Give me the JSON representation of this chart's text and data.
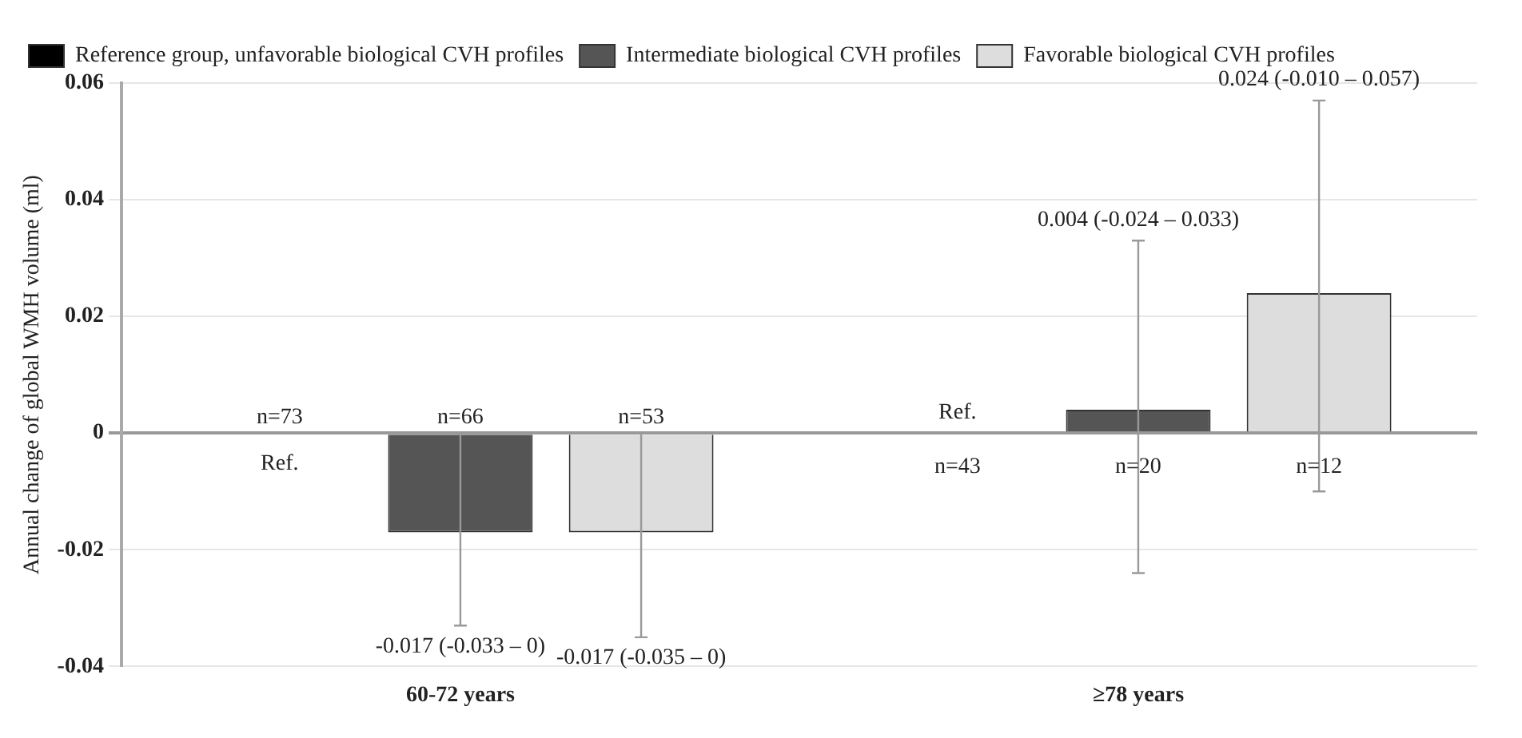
{
  "chart_data": {
    "type": "bar",
    "ylabel": "Annual change of global WMH volume (ml)",
    "categories": [
      "60-72 years",
      "≥78 years"
    ],
    "series": [
      {
        "name": "Reference group, unfavorable biological CVH profiles",
        "color": "#000000",
        "values": [
          0,
          0
        ]
      },
      {
        "name": "Intermediate biological CVH profiles",
        "color": "#555555",
        "values": [
          -0.017,
          0.004
        ],
        "errors": [
          [
            -0.033,
            0
          ],
          [
            -0.024,
            0.033
          ]
        ]
      },
      {
        "name": "Favorable biological CVH profiles",
        "color": "#dddddd",
        "values": [
          -0.017,
          0.024
        ],
        "errors": [
          [
            -0.035,
            0
          ],
          [
            -0.01,
            0.057
          ]
        ]
      }
    ],
    "annotations": [
      "n=73",
      "Ref.",
      "n=66",
      "-0.017 (-0.033 – 0)",
      "n=53",
      "-0.017 (-0.035 – 0)",
      "n=43",
      "Ref.",
      "n=20",
      "0.004 (-0.024 – 0.033)",
      "n=12",
      "0.024 (-0.010 – 0.057)"
    ],
    "ylim": [
      -0.04,
      0.06
    ],
    "yticks": [
      -0.04,
      -0.02,
      0,
      0.02,
      0.04,
      0.06
    ],
    "grid": "y",
    "legend": "top left"
  }
}
